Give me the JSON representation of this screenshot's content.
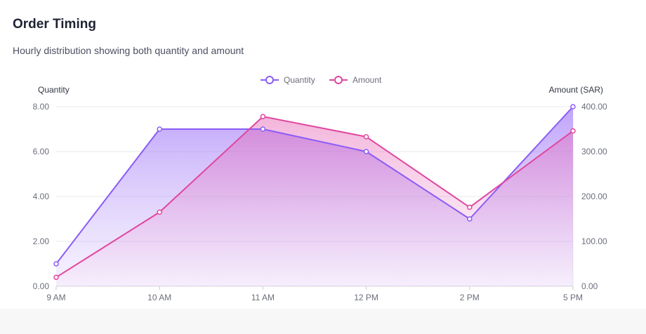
{
  "card": {
    "title": "Order Timing",
    "subtitle": "Hourly distribution showing both quantity and amount"
  },
  "chart_data": {
    "type": "line",
    "categories": [
      "9 AM",
      "10 AM",
      "11 AM",
      "12 PM",
      "2 PM",
      "5 PM"
    ],
    "series": [
      {
        "name": "Quantity",
        "axis": "left",
        "color": "#8b5cf6",
        "values": [
          1,
          7,
          7,
          6,
          3,
          8
        ]
      },
      {
        "name": "Amount",
        "axis": "right",
        "color": "#e0479e",
        "values": [
          20,
          165,
          378,
          333,
          176,
          346
        ]
      }
    ],
    "left_axis": {
      "label": "Quantity",
      "ylim": [
        0,
        8
      ],
      "ticks": [
        "0.00",
        "2.00",
        "4.00",
        "6.00",
        "8.00"
      ]
    },
    "right_axis": {
      "label": "Amount (SAR)",
      "ylim": [
        0,
        400
      ],
      "ticks": [
        "0.00",
        "100.00",
        "200.00",
        "300.00",
        "400.00"
      ]
    },
    "legend": "top-center",
    "grid": true,
    "fill": "area"
  }
}
